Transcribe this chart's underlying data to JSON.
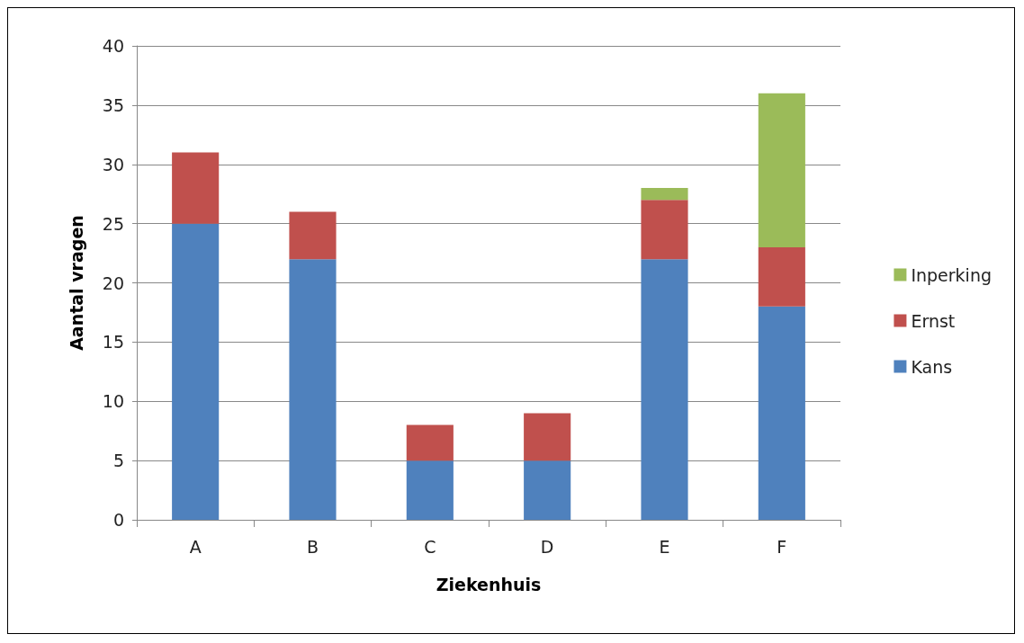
{
  "chart_data": {
    "type": "bar",
    "stacked": true,
    "xlabel": "Ziekenhuis",
    "ylabel": "Aantal vragen",
    "categories": [
      "A",
      "B",
      "C",
      "D",
      "E",
      "F"
    ],
    "series": [
      {
        "name": "Kans",
        "color": "#4f81bd",
        "values": [
          25,
          22,
          5,
          5,
          22,
          18
        ]
      },
      {
        "name": "Ernst",
        "color": "#c0504d",
        "values": [
          6,
          4,
          3,
          4,
          5,
          5
        ]
      },
      {
        "name": "Inperking",
        "color": "#9bbb59",
        "values": [
          null,
          null,
          null,
          null,
          1,
          13
        ]
      }
    ],
    "ylim": [
      0,
      40
    ],
    "yticks": [
      0,
      5,
      10,
      15,
      20,
      25,
      30,
      35,
      40
    ],
    "grid": "y",
    "legend": "right"
  }
}
